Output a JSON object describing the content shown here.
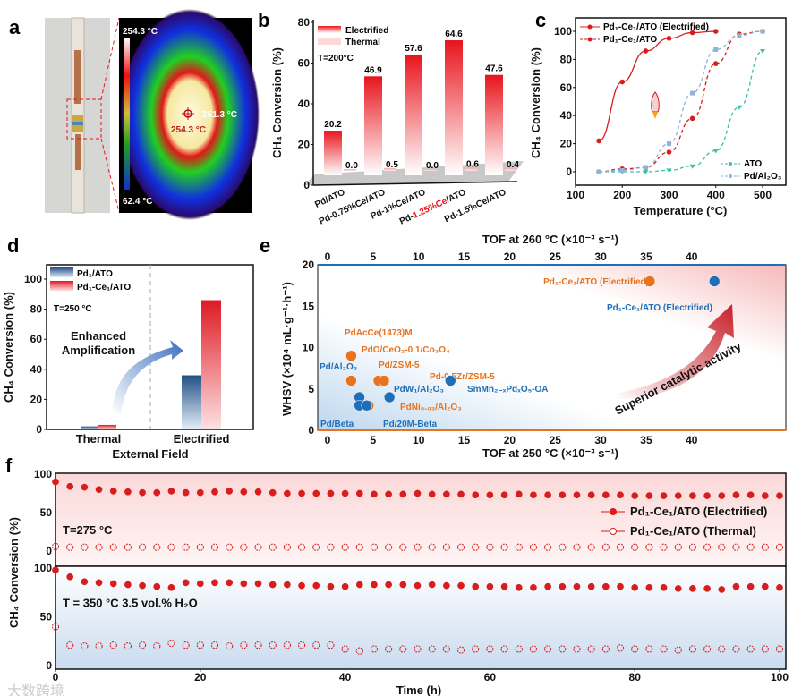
{
  "panels": {
    "a": "a",
    "b": "b",
    "c": "c",
    "d": "d",
    "e": "e",
    "f": "f"
  },
  "panel_a": {
    "colorbar_max": "254.3 °C",
    "colorbar_min": "62.4 °C",
    "spot_max": "254.3 °C",
    "spot_cursor": "251.3 °C"
  },
  "watermark": "大数跨境",
  "chart_data": [
    {
      "id": "b",
      "type": "bar",
      "title": "",
      "annotation": "T=200°C",
      "ylabel": "CH₄ Conversion (%)",
      "xlabel": "",
      "ylim": [
        0,
        80
      ],
      "yticks": [
        "0",
        "20",
        "40",
        "60",
        "80"
      ],
      "categories": [
        {
          "pre": "Pd/ATO",
          "hl": "",
          "post": ""
        },
        {
          "pre": "Pd-0.75%Ce/ATO",
          "hl": "",
          "post": ""
        },
        {
          "pre": "Pd-1%Ce/ATO",
          "hl": "",
          "post": ""
        },
        {
          "pre": "Pd-",
          "hl": "1.25%Ce",
          "post": "/ATO"
        },
        {
          "pre": "Pd-1.5%Ce/ATO",
          "hl": "",
          "post": ""
        }
      ],
      "series": [
        {
          "name": "Electrified",
          "values": [
            20.2,
            46.9,
            57.6,
            64.6,
            47.6
          ],
          "labels": [
            "20.2",
            "46.9",
            "57.6",
            "64.6",
            "47.6"
          ],
          "color": "#e8141c"
        },
        {
          "name": "Thermal",
          "values": [
            0.0,
            0.5,
            0.0,
            0.6,
            0.4
          ],
          "labels": [
            "0.0",
            "0.5",
            "0.0",
            "0.6",
            "0.4"
          ],
          "color": "#f7c9cc"
        }
      ],
      "highlight_color": "#e8141c",
      "legend": "top-left"
    },
    {
      "id": "c",
      "type": "line",
      "xlabel": "Temperature (°C)",
      "ylabel": "CH₄ Conversion (%)",
      "xlim": [
        100,
        500
      ],
      "ylim": [
        -10,
        110
      ],
      "xticks": [
        "100",
        "200",
        "300",
        "400",
        "500"
      ],
      "yticks": [
        "0",
        "20",
        "40",
        "60",
        "80",
        "100"
      ],
      "series": [
        {
          "name": "Pd₁-Ce₁/ATO (Electrified)",
          "x": [
            150,
            200,
            250,
            300,
            350,
            400
          ],
          "y": [
            22,
            64,
            86,
            95,
            99,
            100
          ],
          "color": "#d91c1c",
          "dash": false,
          "marker": "circle"
        },
        {
          "name": "Pd₁-Ce₁/ATO",
          "x": [
            150,
            200,
            250,
            300,
            350,
            400,
            450,
            500
          ],
          "y": [
            0,
            2,
            3,
            14,
            38,
            77,
            98,
            100
          ],
          "color": "#d91c1c",
          "dash": true,
          "marker": "circle"
        },
        {
          "name": "ATO",
          "x": [
            150,
            200,
            250,
            300,
            350,
            400,
            450,
            500
          ],
          "y": [
            0,
            0,
            0,
            1,
            4,
            15,
            46,
            86
          ],
          "color": "#3cbfa6",
          "dash": true,
          "marker": "triangle"
        },
        {
          "name": "Pd/Al₂O₃",
          "x": [
            150,
            200,
            250,
            300,
            350,
            400,
            450,
            500
          ],
          "y": [
            0,
            1,
            3,
            20,
            56,
            87,
            97,
            100
          ],
          "color": "#8fb3d9",
          "dash": true,
          "marker": "square"
        }
      ],
      "legend": "top-left / bottom-right"
    },
    {
      "id": "d",
      "type": "bar",
      "xlabel": "External Field",
      "ylabel": "CH₄ Conversion (%)",
      "ylim": [
        0,
        110
      ],
      "yticks": [
        "0",
        "20",
        "40",
        "60",
        "80",
        "100"
      ],
      "annotation": "T=250 °C",
      "arrow_label": [
        "Enhanced",
        "Amplification"
      ],
      "categories": [
        "Thermal",
        "Electrified"
      ],
      "series": [
        {
          "name": "Pd₁/ATO",
          "values": [
            2,
            36
          ],
          "color": "#2b5b8f"
        },
        {
          "name": "Pd₁-Ce₁/ATO",
          "values": [
            3,
            86
          ],
          "color": "#e01b23"
        }
      ],
      "legend": "top-left"
    },
    {
      "id": "e",
      "type": "scatter",
      "xlabel_bottom": "TOF at 250 °C (×10⁻³ s⁻¹)",
      "xlabel_top": "TOF at 260 °C (×10⁻³ s⁻¹)",
      "ylabel": "WHSV (×10⁴ mL·g⁻¹·h⁻¹)",
      "xlim": [
        -1.5,
        44
      ],
      "ylim": [
        0,
        20
      ],
      "xticks": [
        "0",
        "5",
        "10",
        "15",
        "20",
        "25",
        "30",
        "35",
        "40"
      ],
      "yticks": [
        "0",
        "5",
        "10",
        "15",
        "20"
      ],
      "annotation": "Superior catalytic activity",
      "series": [
        {
          "name": "TOF at 250 °C",
          "axis": "bottom",
          "color": "#e8731e",
          "points": [
            {
              "label": "PdAcCe(1473)M",
              "x": 2.6,
              "y": 9
            },
            {
              "label": "PdO/CeO₂-0.1/Co₃O₄",
              "x": 2.6,
              "y": 6
            },
            {
              "label": "Pd/ZSM-5",
              "x": 5.6,
              "y": 6
            },
            {
              "label": "Pd-0.5Zr/ZSM-5",
              "x": 6.2,
              "y": 6
            },
            {
              "label": "PdNi₀.₀₃/Al₂O₃",
              "x": 4.5,
              "y": 3
            },
            {
              "label": "Pd₁-Ce₁/ATO (Electrified)",
              "x": 35.4,
              "y": 18
            }
          ]
        },
        {
          "name": "TOF at 260 °C",
          "axis": "top",
          "color": "#1f6fb8",
          "points": [
            {
              "label": "Pd/Al₂O₃",
              "x": 3.5,
              "y": 4
            },
            {
              "label": "Pd/Beta",
              "x": 3.5,
              "y": 3
            },
            {
              "label": "Pd/20M-Beta",
              "x": 4.3,
              "y": 3
            },
            {
              "label": "PdW₁/Al₂O₃",
              "x": 6.8,
              "y": 4
            },
            {
              "label": "SmMn₂₋ₓPdₓO₅-OA",
              "x": 13.5,
              "y": 6
            },
            {
              "label": "Pd₁-Ce₁/ATO (Electrified)",
              "x": 42.5,
              "y": 18
            }
          ]
        }
      ]
    },
    {
      "id": "f",
      "type": "scatter",
      "xlabel": "Time (h)",
      "ylabel": "CH₄ Conversion (%)",
      "xlim": [
        0,
        100
      ],
      "xticks": [
        "0",
        "20",
        "40",
        "60",
        "80",
        "100"
      ],
      "t_step_h": 2,
      "subplots": [
        {
          "condition": "T=275 °C",
          "ylim": [
            -20,
            100
          ],
          "yticks": [
            "0",
            "50",
            "100"
          ],
          "series": [
            {
              "name": "Pd₁-Ce₁/ATO (Electrified)",
              "filled": true,
              "values": [
                90,
                84,
                83,
                80,
                78,
                77,
                76,
                76,
                78,
                76,
                76,
                77,
                78,
                77,
                77,
                76,
                75,
                75,
                75,
                75,
                75,
                75,
                74,
                74,
                74,
                75,
                74,
                74,
                74,
                73,
                73,
                73,
                74,
                73,
                73,
                73,
                73,
                73,
                73,
                73,
                72,
                72,
                72,
                72,
                72,
                72,
                72,
                73,
                73,
                72,
                72
              ]
            },
            {
              "name": "Pd₁-Ce₁/ATO (Thermal)",
              "filled": false,
              "values": [
                6,
                5,
                5,
                5,
                5,
                5,
                5,
                5,
                5,
                5,
                5,
                5,
                5,
                5,
                5,
                5,
                5,
                5,
                5,
                5,
                5,
                5,
                5,
                5,
                5,
                5,
                5,
                5,
                5,
                5,
                5,
                5,
                5,
                5,
                5,
                5,
                5,
                5,
                5,
                5,
                5,
                5,
                5,
                5,
                5,
                5,
                5,
                5,
                5,
                5,
                5
              ]
            }
          ]
        },
        {
          "condition": "T = 350 °C  3.5 vol.% H₂O",
          "ylim": [
            0,
            100
          ],
          "yticks": [
            "0",
            "50",
            "100"
          ],
          "series": [
            {
              "name": "Pd₁-Ce₁/ATO (Electrified)",
              "filled": true,
              "values": [
                98,
                91,
                86,
                85,
                84,
                83,
                82,
                81,
                80,
                85,
                84,
                85,
                85,
                84,
                84,
                83,
                83,
                82,
                82,
                81,
                81,
                83,
                83,
                83,
                83,
                82,
                83,
                82,
                82,
                81,
                81,
                81,
                80,
                80,
                81,
                81,
                81,
                81,
                81,
                81,
                80,
                80,
                80,
                79,
                79,
                79,
                78,
                81,
                81,
                81,
                80
              ]
            },
            {
              "name": "Pd₁-Ce₁/ATO (Thermal)",
              "filled": false,
              "values": [
                40,
                21,
                20,
                20,
                21,
                20,
                21,
                20,
                23,
                21,
                21,
                21,
                20,
                21,
                21,
                21,
                21,
                21,
                21,
                21,
                17,
                15,
                17,
                17,
                17,
                17,
                17,
                17,
                16,
                17,
                17,
                17,
                17,
                17,
                17,
                17,
                17,
                17,
                17,
                18,
                17,
                17,
                17,
                16,
                17,
                17,
                17,
                17,
                17,
                17,
                17
              ]
            }
          ]
        }
      ],
      "color": "#d91c1c",
      "legend": "right"
    }
  ]
}
